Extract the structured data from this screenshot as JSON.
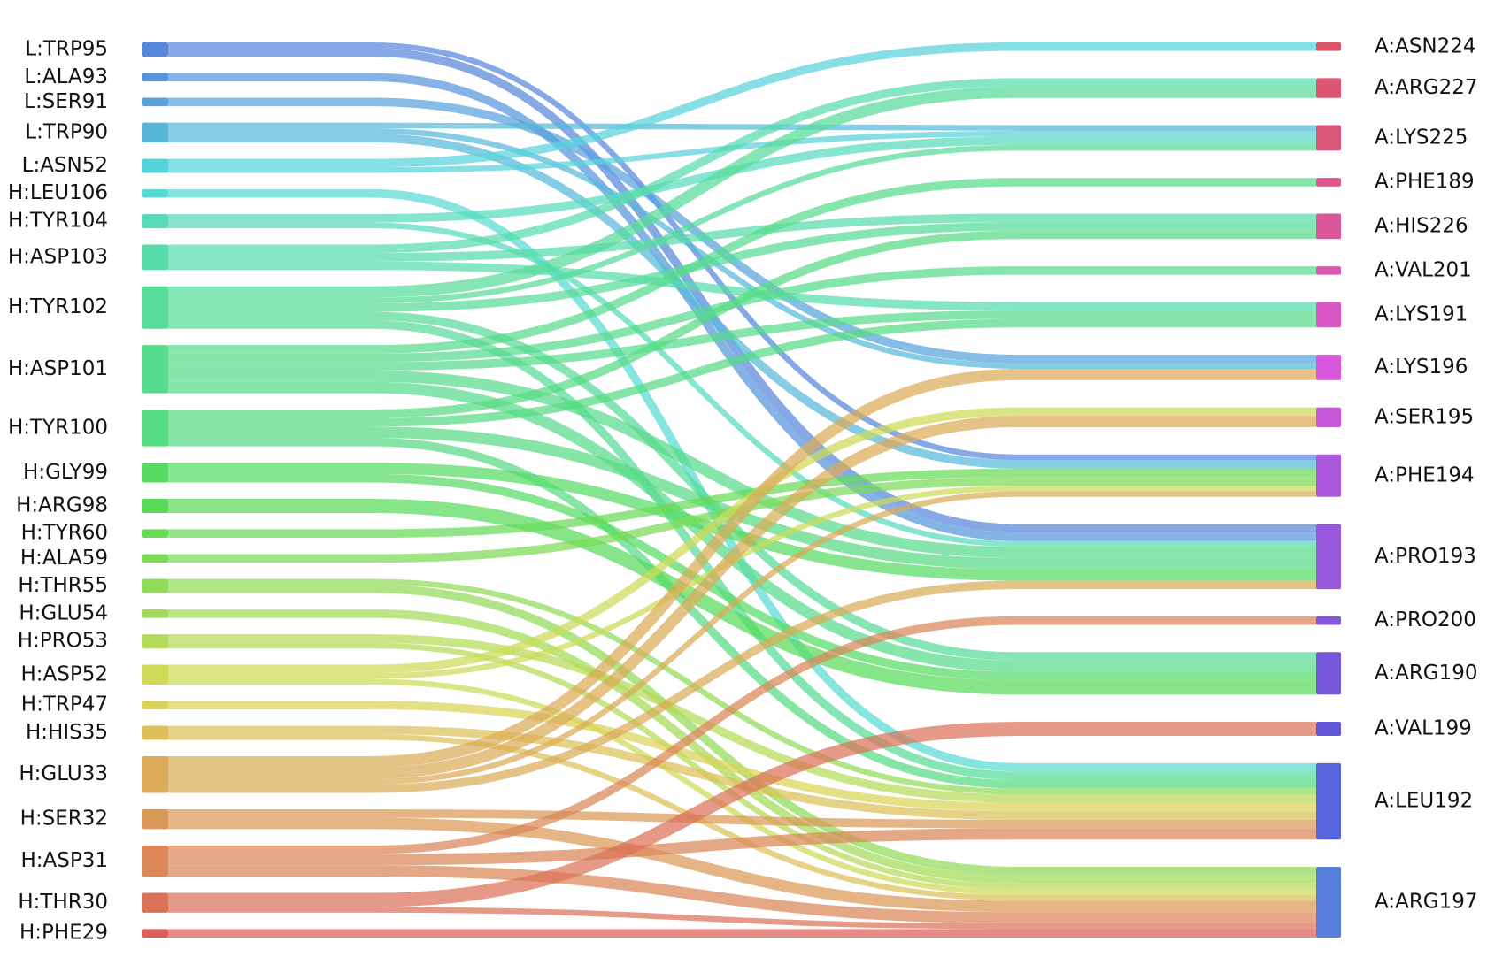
{
  "chart_data": {
    "type": "sankey",
    "left_nodes": [
      {
        "name": "L:TRP95",
        "color": "hsl(218,65%,60%)"
      },
      {
        "name": "L:ALA93",
        "color": "hsl(212,65%,60%)"
      },
      {
        "name": "L:SER91",
        "color": "hsl(206,65%,60%)"
      },
      {
        "name": "L:TRP90",
        "color": "hsl(196,65%,60%)"
      },
      {
        "name": "L:ASN52",
        "color": "hsl(184,65%,60%)"
      },
      {
        "name": "H:LEU106",
        "color": "hsl(176,65%,60%)"
      },
      {
        "name": "H:TYR104",
        "color": "hsl(166,65%,60%)"
      },
      {
        "name": "H:ASP103",
        "color": "hsl(158,65%,60%)"
      },
      {
        "name": "H:TYR102",
        "color": "hsl(150,65%,60%)"
      },
      {
        "name": "H:ASP101",
        "color": "hsl(144,65%,60%)"
      },
      {
        "name": "H:TYR100",
        "color": "hsl(140,65%,60%)"
      },
      {
        "name": "H:GLY99",
        "color": "hsl(126,65%,60%)"
      },
      {
        "name": "H:ARG98",
        "color": "hsl(122,65%,60%)"
      },
      {
        "name": "H:TYR60",
        "color": "hsl(112,65%,60%)"
      },
      {
        "name": "H:ALA59",
        "color": "hsl(104,65%,60%)"
      },
      {
        "name": "H:THR55",
        "color": "hsl(94,65%,60%)"
      },
      {
        "name": "H:GLU54",
        "color": "hsl(86,65%,60%)"
      },
      {
        "name": "H:PRO53",
        "color": "hsl(78,65%,60%)"
      },
      {
        "name": "H:ASP52",
        "color": "hsl(66,65%,60%)"
      },
      {
        "name": "H:TRP47",
        "color": "hsl(56,65%,60%)"
      },
      {
        "name": "H:HIS35",
        "color": "hsl(48,65%,60%)"
      },
      {
        "name": "H:GLU33",
        "color": "hsl(38,65%,60%)"
      },
      {
        "name": "H:SER32",
        "color": "hsl(30,65%,60%)"
      },
      {
        "name": "H:ASP31",
        "color": "hsl(22,65%,60%)"
      },
      {
        "name": "H:THR30",
        "color": "hsl(12,65%,60%)"
      },
      {
        "name": "H:PHE29",
        "color": "hsl(4,65%,60%)"
      }
    ],
    "right_nodes": [
      {
        "name": "A:ASN224",
        "color": "hsl(352,65%,60%)"
      },
      {
        "name": "A:ARG227",
        "color": "hsl(348,65%,60%)"
      },
      {
        "name": "A:LYS225",
        "color": "hsl(344,65%,60%)"
      },
      {
        "name": "A:PHE189",
        "color": "hsl(336,65%,60%)"
      },
      {
        "name": "A:HIS226",
        "color": "hsl(330,65%,60%)"
      },
      {
        "name": "A:VAL201",
        "color": "hsl(318,65%,60%)"
      },
      {
        "name": "A:LYS191",
        "color": "hsl(310,65%,60%)"
      },
      {
        "name": "A:LYS196",
        "color": "hsl(298,65%,60%)"
      },
      {
        "name": "A:SER195",
        "color": "hsl(290,65%,60%)"
      },
      {
        "name": "A:PHE194",
        "color": "hsl(278,65%,60%)"
      },
      {
        "name": "A:PRO193",
        "color": "hsl(270,65%,60%)"
      },
      {
        "name": "A:PRO200",
        "color": "hsl(262,65%,60%)"
      },
      {
        "name": "A:ARG190",
        "color": "hsl(254,65%,60%)"
      },
      {
        "name": "A:VAL199",
        "color": "hsl(244,65%,60%)"
      },
      {
        "name": "A:LEU192",
        "color": "hsl(234,65%,60%)"
      },
      {
        "name": "A:ARG197",
        "color": "hsl(222,65%,60%)"
      }
    ],
    "links": [
      {
        "source": "L:TRP95",
        "target": "A:PHE194",
        "value": 2
      },
      {
        "source": "L:TRP95",
        "target": "A:PRO193",
        "value": 3
      },
      {
        "source": "L:ALA93",
        "target": "A:PRO193",
        "value": 3
      },
      {
        "source": "L:SER91",
        "target": "A:LYS196",
        "value": 3
      },
      {
        "source": "L:TRP90",
        "target": "A:LYS225",
        "value": 2
      },
      {
        "source": "L:TRP90",
        "target": "A:LYS196",
        "value": 2
      },
      {
        "source": "L:TRP90",
        "target": "A:PHE194",
        "value": 3
      },
      {
        "source": "L:ASN52",
        "target": "A:ASN224",
        "value": 3
      },
      {
        "source": "L:ASN52",
        "target": "A:LYS225",
        "value": 2
      },
      {
        "source": "H:LEU106",
        "target": "A:LEU192",
        "value": 3
      },
      {
        "source": "H:TYR104",
        "target": "A:LYS225",
        "value": 3
      },
      {
        "source": "H:TYR104",
        "target": "A:PRO193",
        "value": 2
      },
      {
        "source": "H:ASP103",
        "target": "A:ARG227",
        "value": 3
      },
      {
        "source": "H:ASP103",
        "target": "A:HIS226",
        "value": 3
      },
      {
        "source": "H:ASP103",
        "target": "A:LYS191",
        "value": 3
      },
      {
        "source": "H:TYR102",
        "target": "A:ARG227",
        "value": 4
      },
      {
        "source": "H:TYR102",
        "target": "A:LYS225",
        "value": 2
      },
      {
        "source": "H:TYR102",
        "target": "A:HIS226",
        "value": 3
      },
      {
        "source": "H:TYR102",
        "target": "A:ARG190",
        "value": 3
      },
      {
        "source": "H:TYR102",
        "target": "A:LEU192",
        "value": 3
      },
      {
        "source": "H:ASP101",
        "target": "A:PHE189",
        "value": 3
      },
      {
        "source": "H:ASP101",
        "target": "A:VAL201",
        "value": 3
      },
      {
        "source": "H:ASP101",
        "target": "A:LYS191",
        "value": 3
      },
      {
        "source": "H:ASP101",
        "target": "A:PRO193",
        "value": 4
      },
      {
        "source": "H:ASP101",
        "target": "A:ARG190",
        "value": 4
      },
      {
        "source": "H:TYR100",
        "target": "A:HIS226",
        "value": 3
      },
      {
        "source": "H:TYR100",
        "target": "A:LYS191",
        "value": 3
      },
      {
        "source": "H:TYR100",
        "target": "A:PRO193",
        "value": 4
      },
      {
        "source": "H:TYR100",
        "target": "A:LEU192",
        "value": 3
      },
      {
        "source": "H:GLY99",
        "target": "A:PRO193",
        "value": 4
      },
      {
        "source": "H:GLY99",
        "target": "A:ARG190",
        "value": 3
      },
      {
        "source": "H:ARG98",
        "target": "A:ARG190",
        "value": 5
      },
      {
        "source": "H:TYR60",
        "target": "A:PHE194",
        "value": 3
      },
      {
        "source": "H:ALA59",
        "target": "A:PHE194",
        "value": 3
      },
      {
        "source": "H:THR55",
        "target": "A:LEU192",
        "value": 2
      },
      {
        "source": "H:THR55",
        "target": "A:ARG197",
        "value": 3
      },
      {
        "source": "H:GLU54",
        "target": "A:ARG197",
        "value": 3
      },
      {
        "source": "H:PRO53",
        "target": "A:LEU192",
        "value": 3
      },
      {
        "source": "H:PRO53",
        "target": "A:ARG197",
        "value": 2
      },
      {
        "source": "H:ASP52",
        "target": "A:SER195",
        "value": 3
      },
      {
        "source": "H:ASP52",
        "target": "A:PHE194",
        "value": 2
      },
      {
        "source": "H:ASP52",
        "target": "A:ARG197",
        "value": 2
      },
      {
        "source": "H:TRP47",
        "target": "A:LEU192",
        "value": 3
      },
      {
        "source": "H:HIS35",
        "target": "A:LEU192",
        "value": 3
      },
      {
        "source": "H:HIS35",
        "target": "A:ARG197",
        "value": 2
      },
      {
        "source": "H:GLU33",
        "target": "A:LYS196",
        "value": 4
      },
      {
        "source": "H:GLU33",
        "target": "A:SER195",
        "value": 4
      },
      {
        "source": "H:GLU33",
        "target": "A:PHE194",
        "value": 2
      },
      {
        "source": "H:GLU33",
        "target": "A:PRO193",
        "value": 3
      },
      {
        "source": "H:SER32",
        "target": "A:LEU192",
        "value": 3
      },
      {
        "source": "H:SER32",
        "target": "A:ARG197",
        "value": 4
      },
      {
        "source": "H:ASP31",
        "target": "A:PRO200",
        "value": 3
      },
      {
        "source": "H:ASP31",
        "target": "A:LEU192",
        "value": 4
      },
      {
        "source": "H:ASP31",
        "target": "A:ARG197",
        "value": 4
      },
      {
        "source": "H:THR30",
        "target": "A:VAL199",
        "value": 5
      },
      {
        "source": "H:THR30",
        "target": "A:ARG197",
        "value": 2
      },
      {
        "source": "H:PHE29",
        "target": "A:ARG197",
        "value": 3
      }
    ]
  }
}
